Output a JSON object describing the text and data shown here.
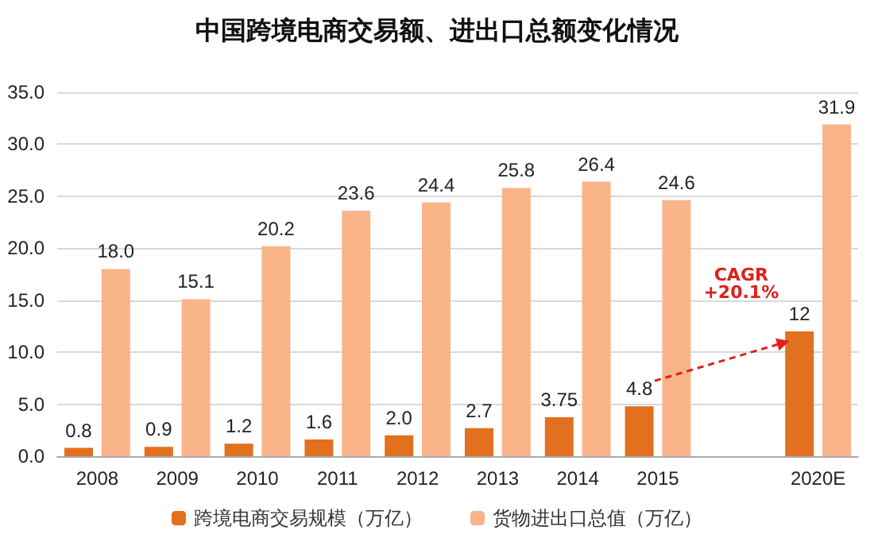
{
  "chart_data": {
    "type": "bar",
    "title": "中国跨境电商交易额、进出口总额变化情况",
    "categories": [
      "2008",
      "2009",
      "2010",
      "2011",
      "2012",
      "2013",
      "2014",
      "2015",
      null,
      "2020E"
    ],
    "series": [
      {
        "name": "跨境电商交易规模（万亿）",
        "color": "#e2701e",
        "values": [
          0.8,
          0.9,
          1.2,
          1.6,
          2.0,
          2.7,
          3.75,
          4.8,
          null,
          12
        ],
        "value_labels": [
          "0.8",
          "0.9",
          "1.2",
          "1.6",
          "2.0",
          "2.7",
          "3.75",
          "4.8",
          null,
          "12"
        ]
      },
      {
        "name": "货物进出口总值（万亿）",
        "color": "#f9b48a",
        "values": [
          18.0,
          15.1,
          20.2,
          23.6,
          24.4,
          25.8,
          26.4,
          24.6,
          null,
          31.9
        ],
        "value_labels": [
          "18.0",
          "15.1",
          "20.2",
          "23.6",
          "24.4",
          "25.8",
          "26.4",
          "24.6",
          null,
          "31.9"
        ]
      }
    ],
    "ylim": [
      0,
      35
    ],
    "yticks": [
      {
        "value": 0,
        "label": "0.0"
      },
      {
        "value": 5,
        "label": "5.0"
      },
      {
        "value": 10,
        "label": "10.0"
      },
      {
        "value": 15,
        "label": "15.0"
      },
      {
        "value": 20,
        "label": "20.0"
      },
      {
        "value": 25,
        "label": "25.0"
      },
      {
        "value": 30,
        "label": "30.0"
      },
      {
        "value": 35,
        "label": "35.0"
      }
    ],
    "grid": "y",
    "legend": "bottom",
    "annotations": [
      "CAGR\n+20.1%"
    ]
  }
}
